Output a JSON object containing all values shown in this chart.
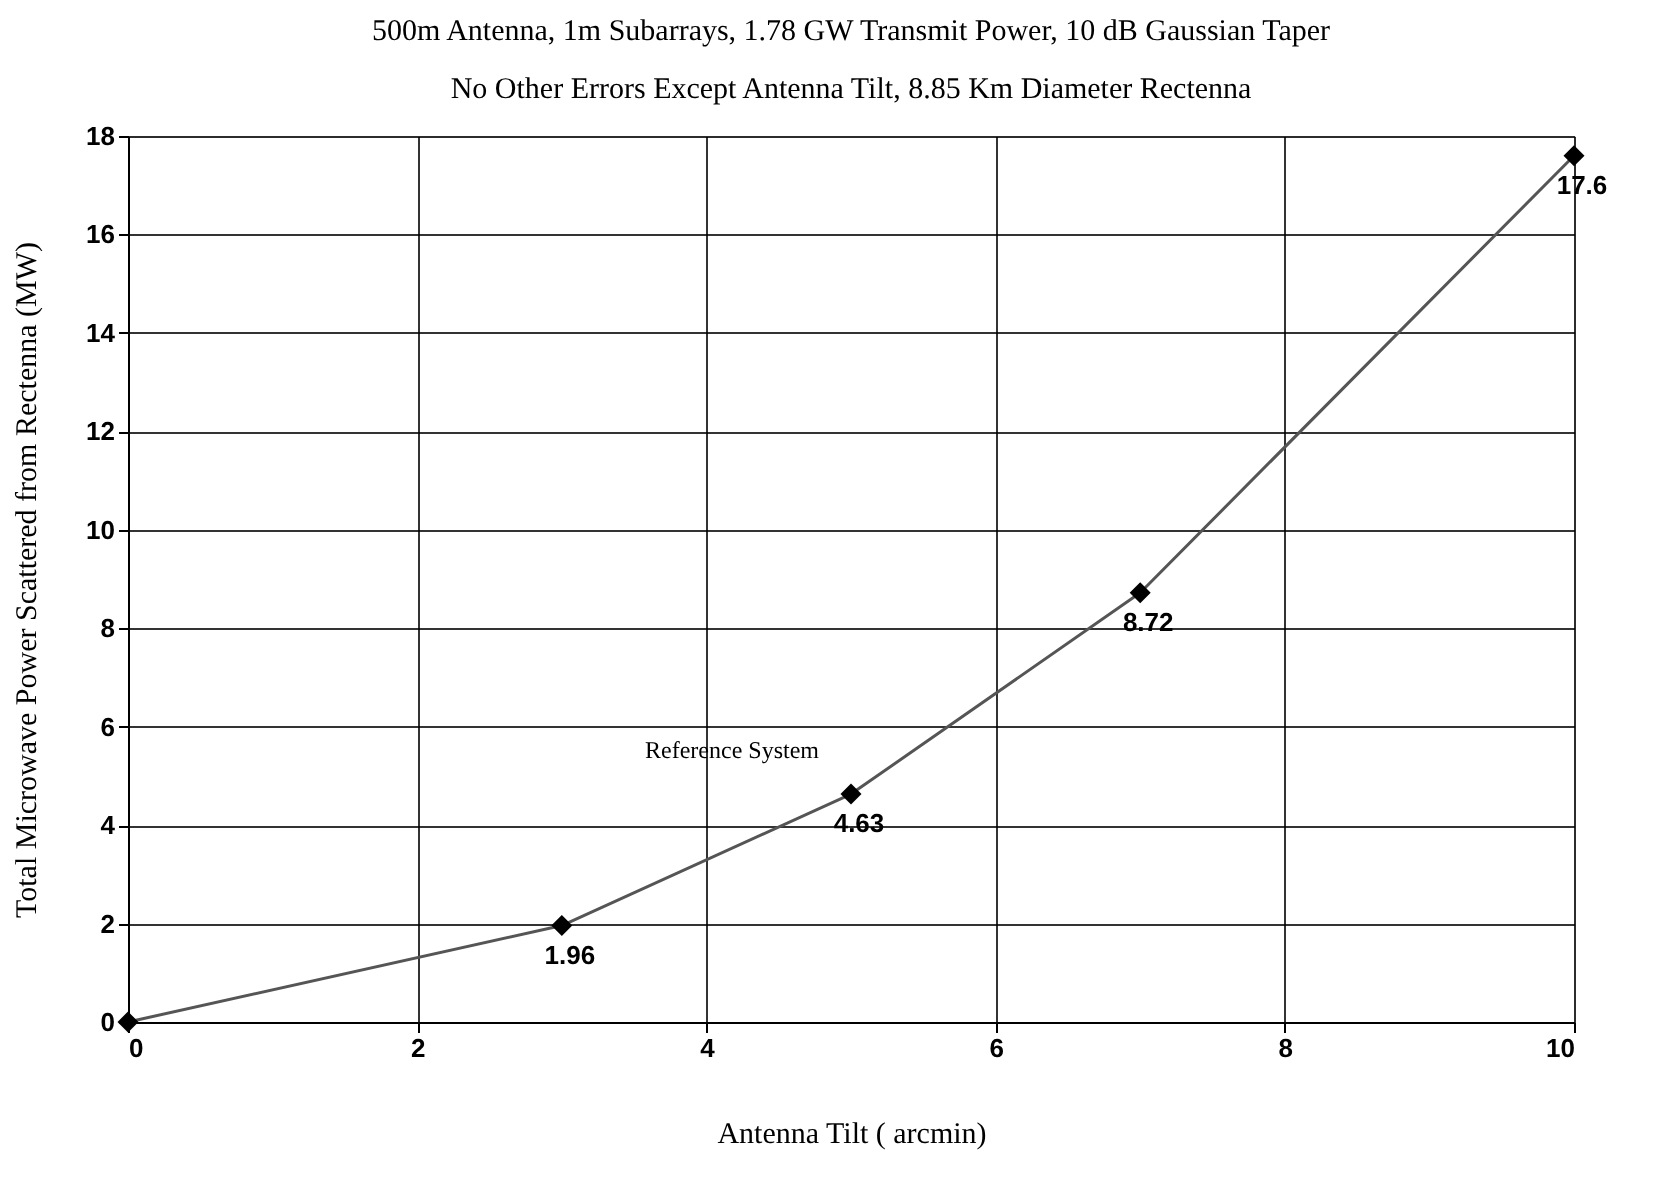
{
  "chart_data": {
    "type": "line",
    "title": "500m Antenna,  1m Subarrays, 1.78 GW Transmit Power, 10 dB Gaussian Taper",
    "subtitle": "No Other Errors Except Antenna Tilt, 8.85 Km Diameter Rectenna",
    "xlabel": "Antenna Tilt ( arcmin)",
    "ylabel": "Total Microwave Power Scattered from Rectenna (MW)",
    "x": [
      0,
      3,
      5,
      7,
      10
    ],
    "series": [
      {
        "color": "#555555",
        "values": [
          0,
          1.96,
          4.63,
          8.72,
          17.6
        ],
        "value_labels": [
          null,
          "1.96",
          "4.63",
          "8.72",
          "17.6"
        ]
      }
    ],
    "xlim": [
      0,
      10
    ],
    "xticks": [
      0,
      2,
      4,
      6,
      8,
      10
    ],
    "ylim": [
      0,
      18
    ],
    "yticks": [
      0,
      2,
      4,
      6,
      8,
      10,
      12,
      14,
      16,
      18
    ],
    "grid": true,
    "marker": "diamond",
    "line_style": "solid",
    "annotations": [
      {
        "text": "Reference System",
        "x": 5,
        "y": 4.63
      }
    ]
  }
}
